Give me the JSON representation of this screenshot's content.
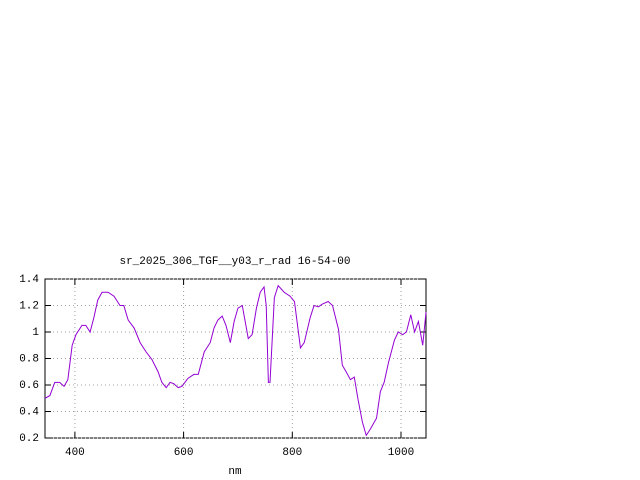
{
  "chart_data": {
    "type": "line",
    "title": "sr_2025_306_TGF__y03_r_rad 16-54-00",
    "x_label": "nm",
    "x": [
      345,
      354,
      363,
      372,
      380,
      387,
      395,
      402,
      413,
      420,
      428,
      435,
      442,
      450,
      461,
      472,
      483,
      490,
      498,
      509,
      520,
      531,
      542,
      553,
      560,
      568,
      575,
      582,
      590,
      597,
      608,
      619,
      627,
      638,
      649,
      656,
      663,
      671,
      678,
      686,
      693,
      700,
      708,
      719,
      726,
      734,
      741,
      748,
      752,
      756,
      759,
      767,
      774,
      785,
      796,
      804,
      815,
      822,
      833,
      840,
      848,
      855,
      866,
      874,
      885,
      892,
      899,
      907,
      914,
      921,
      929,
      936,
      944,
      955,
      962,
      969,
      977,
      988,
      995,
      1003,
      1010,
      1018,
      1025,
      1032,
      1040,
      1046
    ],
    "series": [
      {
        "color": "#9400d3",
        "values": [
          0.5,
          0.52,
          0.62,
          0.62,
          0.59,
          0.64,
          0.9,
          0.98,
          1.05,
          1.05,
          1.0,
          1.11,
          1.24,
          1.3,
          1.3,
          1.27,
          1.2,
          1.2,
          1.09,
          1.03,
          0.92,
          0.85,
          0.79,
          0.7,
          0.62,
          0.58,
          0.62,
          0.61,
          0.58,
          0.59,
          0.65,
          0.68,
          0.68,
          0.85,
          0.92,
          1.03,
          1.09,
          1.12,
          1.05,
          0.92,
          1.08,
          1.18,
          1.2,
          0.95,
          0.98,
          1.18,
          1.3,
          1.34,
          1.2,
          0.62,
          0.62,
          1.26,
          1.35,
          1.3,
          1.27,
          1.23,
          0.88,
          0.92,
          1.11,
          1.2,
          1.19,
          1.21,
          1.23,
          1.2,
          1.02,
          0.75,
          0.7,
          0.64,
          0.66,
          0.49,
          0.32,
          0.22,
          0.27,
          0.35,
          0.55,
          0.62,
          0.77,
          0.94,
          1.0,
          0.98,
          1.0,
          1.13,
          1.0,
          1.08,
          0.9,
          1.15
        ]
      }
    ],
    "xlim": [
      345,
      1046
    ],
    "ylim": [
      0.2,
      1.4
    ],
    "xticks": [
      400,
      600,
      800,
      1000
    ],
    "yticks": [
      0.2,
      0.4,
      0.6,
      0.8,
      1,
      1.2,
      1.4
    ],
    "grid": true
  }
}
